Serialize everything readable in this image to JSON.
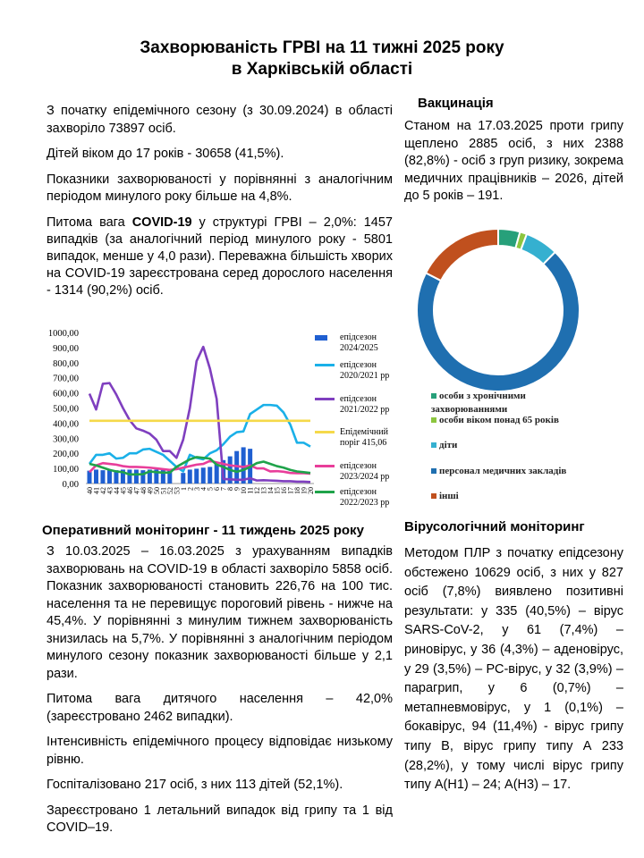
{
  "title": {
    "line1": "Захворюваність ГРВІ на 11 тижні 2025 року",
    "line2": "в Харківській області"
  },
  "left_top": {
    "p1": "З початку епідемічного сезону (з 30.09.2024) в області захворіло 73897 осіб.",
    "p2": "Дітей віком до 17 років - 30658 (41,5%).",
    "p3": "Показники захворюваності у порівнянні з аналогічним періодом минулого року більше на 4,8%.",
    "p4_pre": "Питома вага ",
    "p4_bold": "COVID-19",
    "p4_post": " у структурі ГРВІ – 2,0%: 1457 випадків (за аналогічний період минулого року - 5801 випадок, менше у 4,0 рази). Переважна більшість хворих на COVID-19 зареєстрована серед дорослого населення - 1314 (90,2%) осіб."
  },
  "chart_data": {
    "type": "line",
    "title": "",
    "ylim": [
      0,
      1000
    ],
    "yticks": [
      "0,00",
      "100,00",
      "200,00",
      "300,00",
      "400,00",
      "500,00",
      "600,00",
      "700,00",
      "800,00",
      "900,00",
      "1000,00"
    ],
    "categories": [
      "40",
      "41",
      "42",
      "43",
      "44",
      "45",
      "46",
      "47",
      "48",
      "49",
      "50",
      "51",
      "52",
      "53",
      "1",
      "2",
      "3",
      "4",
      "5",
      "6",
      "7",
      "8",
      "9",
      "10",
      "11",
      "12",
      "13",
      "14",
      "15",
      "16",
      "17",
      "18",
      "19",
      "20"
    ],
    "series": [
      {
        "name": "епідсезон 2024/2025",
        "kind": "bar",
        "color": "#1f5fd1",
        "values": [
          85,
          92,
          88,
          90,
          88,
          92,
          92,
          92,
          88,
          92,
          92,
          90,
          90,
          null,
          70,
          92,
          98,
          105,
          110,
          128,
          155,
          180,
          215,
          240,
          230,
          null,
          null,
          null,
          null,
          null,
          null,
          null,
          null,
          null
        ]
      },
      {
        "name": "епідсезон 2020/2021 рр",
        "kind": "line",
        "color": "#1ab0e8",
        "values": [
          130,
          190,
          190,
          200,
          165,
          170,
          200,
          200,
          225,
          230,
          210,
          190,
          150,
          110,
          80,
          190,
          170,
          160,
          200,
          220,
          260,
          310,
          340,
          345,
          460,
          490,
          520,
          520,
          515,
          470,
          390,
          270,
          270,
          245
        ]
      },
      {
        "name": "епідсезон 2021/2022 рр",
        "kind": "line",
        "color": "#7f3fbf",
        "values": [
          595,
          490,
          660,
          665,
          590,
          500,
          420,
          365,
          350,
          330,
          290,
          215,
          215,
          170,
          290,
          500,
          810,
          905,
          760,
          560,
          30,
          28,
          25,
          25,
          35,
          20,
          22,
          20,
          18,
          15,
          15,
          12,
          12,
          10
        ]
      },
      {
        "name": "Епідемічний поріг 415,06",
        "kind": "line",
        "color": "#f5d94a",
        "values": [
          415.06,
          415.06,
          415.06,
          415.06,
          415.06,
          415.06,
          415.06,
          415.06,
          415.06,
          415.06,
          415.06,
          415.06,
          415.06,
          415.06,
          415.06,
          415.06,
          415.06,
          415.06,
          415.06,
          415.06,
          415.06,
          415.06,
          415.06,
          415.06,
          415.06,
          415.06,
          415.06,
          415.06,
          415.06,
          415.06,
          415.06,
          415.06,
          415.06,
          415.06
        ]
      },
      {
        "name": "епідсезон 2023/2024 рр",
        "kind": "line",
        "color": "#e83e9a",
        "values": [
          75,
          120,
          135,
          130,
          125,
          115,
          110,
          110,
          108,
          105,
          100,
          95,
          90,
          95,
          105,
          115,
          125,
          130,
          150,
          140,
          130,
          120,
          115,
          110,
          120,
          100,
          100,
          80,
          82,
          78,
          70,
          68,
          68,
          65
        ]
      },
      {
        "name": "епідсезон 2022/2023 рр",
        "kind": "line",
        "color": "#1fa34a",
        "values": [
          130,
          120,
          105,
          90,
          80,
          75,
          60,
          60,
          62,
          80,
          75,
          72,
          72,
          110,
          135,
          160,
          175,
          170,
          165,
          125,
          110,
          90,
          78,
          90,
          110,
          135,
          145,
          130,
          115,
          105,
          90,
          80,
          75,
          70
        ]
      }
    ]
  },
  "vaccination": {
    "heading": "Вакцинація",
    "text": "Станом на 17.03.2025 проти грипу щеплено 2885 осіб, з них 2388 (82,8%) - осіб з груп ризику, зокрема медичних працівників – 2026, дітей до 5 років – 191.",
    "donut": [
      {
        "label": "особи з хронічними захворюваннями",
        "value": 125,
        "color": "#27a07a"
      },
      {
        "label": "особи віком понад 65 років",
        "value": 40,
        "color": "#8cc63f"
      },
      {
        "label": "діти",
        "value": 191,
        "color": "#35b0d0"
      },
      {
        "label": "персонал медичних закладів",
        "value": 2026,
        "color": "#1f6fb0"
      },
      {
        "label": "інші",
        "value": 503,
        "color": "#c0501e"
      }
    ]
  },
  "monitoring": {
    "heading": "Оперативний моніторинг - 11 тиждень 2025 року",
    "p1": "З 10.03.2025 – 16.03.2025 з урахуванням випадків захворювань на COVID-19 в області захворіло 5858 осіб. Показник захворюваності становить 226,76 на 100 тис. населення та не перевищує пороговий рівень - нижче на 45,4%. У порівнянні з минулим тижнем захворюваність знизилась на 5,7%. У порівнянні з аналогічним періодом минулого сезону показник захворюваності більше у 2,1 рази.",
    "p2": "Питома вага дитячого населення – 42,0% (зареєстровано 2462 випадки).",
    "p3": "Інтенсивність епідемічного процесу відповідає низькому рівню.",
    "p4": "Госпіталізовано 217 осіб, з них 113 дітей (52,1%).",
    "p5": "Зареєстровано 1 летальний випадок від грипу та 1 від COVID–19."
  },
  "virology": {
    "heading": "Вірусологічний моніторинг",
    "text": "Методом ПЛР з початку епідсезону обстежено 10629 осіб, з них у 827 осіб (7,8%) виявлено позитивні результати: у 335 (40,5%) – вірус SARS-CoV-2, у 61 (7,4%) – риновірус, у 36 (4,3%) – аденовірус, у 29 (3,5%) – РС-вірус, у 32 (3,9%) – парагрип, у 6 (0,7%) – метапневмовірус, у 1 (0,1%) – бокавірус, 94 (11,4%) - вірус грипу типу В, вірус грипу типу А 233 (28,2%), у тому числі вірус грипу типу А(Н1) – 24; А(Н3) – 17."
  }
}
